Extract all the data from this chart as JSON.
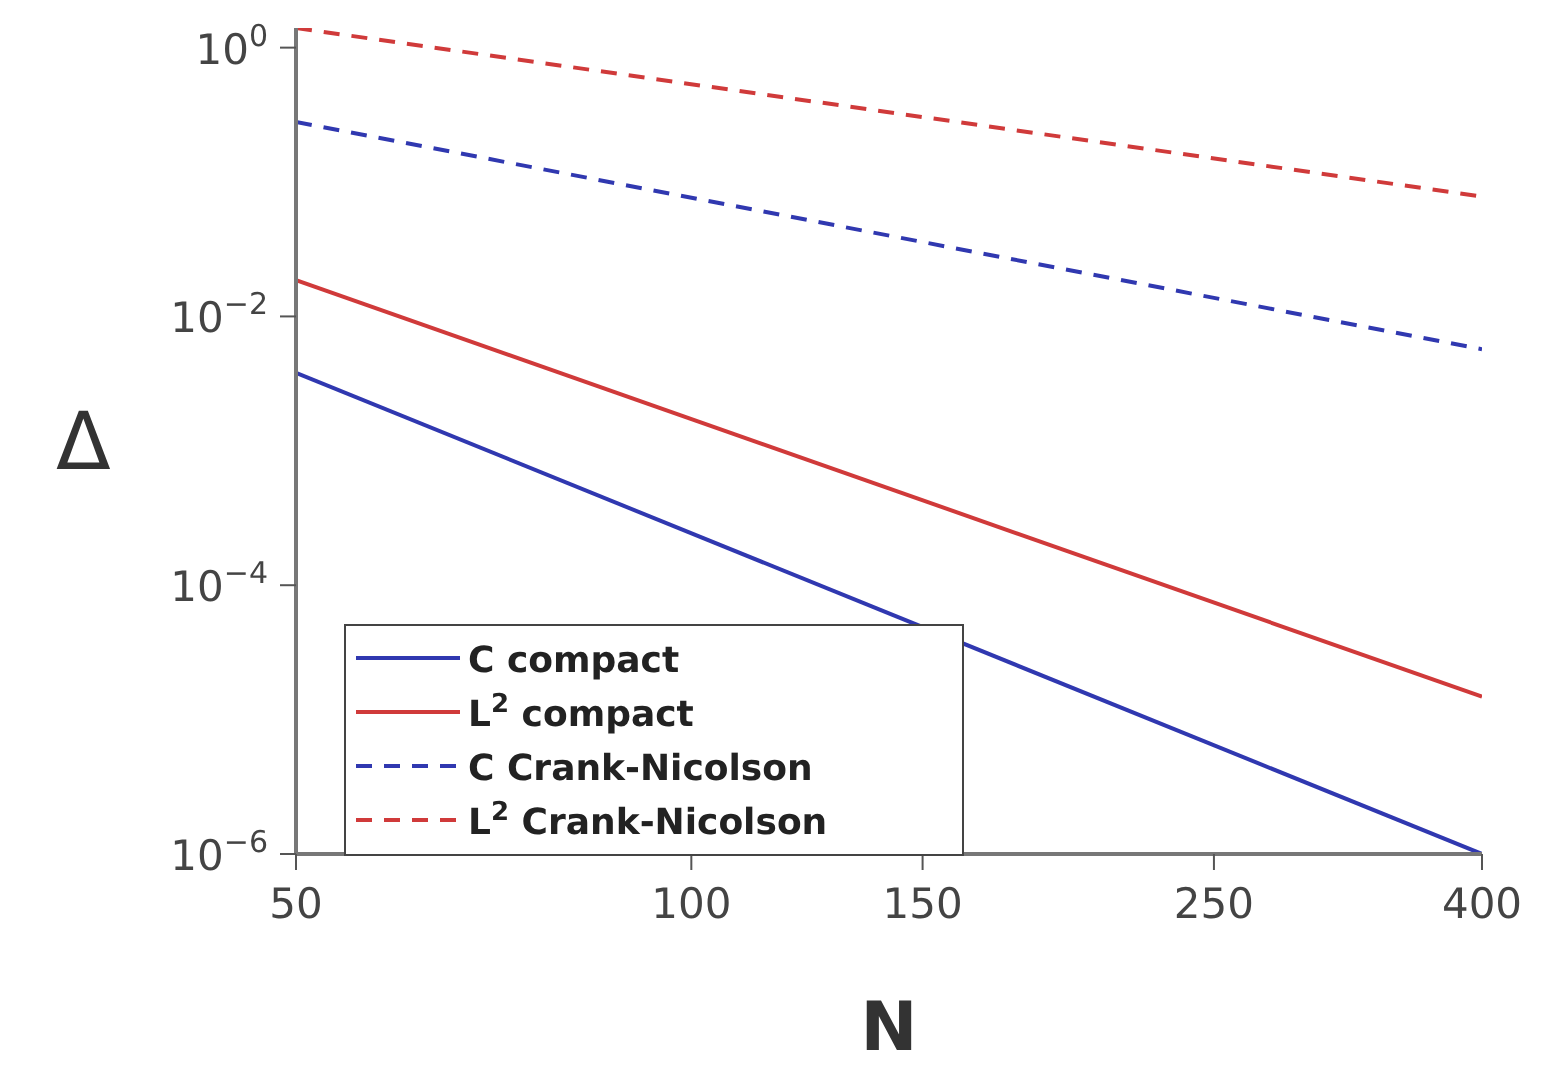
{
  "chart_data": {
    "type": "line",
    "xlabel": "N",
    "ylabel": "Δ",
    "log": "xy",
    "x": [
      50,
      400
    ],
    "xlim": [
      50,
      400
    ],
    "xticks": [
      50,
      100,
      150,
      250,
      400
    ],
    "ylim": [
      1e-06,
      1.4
    ],
    "yticks": [
      {
        "value": 1,
        "label": "10$^{0}$"
      },
      {
        "value": 0.01,
        "label": "10$^{−2}$"
      },
      {
        "value": 0.0001,
        "label": "10$^{−4}$"
      },
      {
        "value": 1e-06,
        "label": "10$^{−6}$"
      }
    ],
    "grid": false,
    "legend": "bottom left",
    "marker": "none",
    "series": [
      {
        "name": "C compact",
        "color": "#3038b0",
        "line_style": "solid",
        "values": [
          0.0038,
          1e-06
        ]
      },
      {
        "name": "L$^{2}$ compact",
        "color": "#d03a3a",
        "line_style": "solid",
        "values": [
          0.0186,
          1.48e-05
        ]
      },
      {
        "name": "C Crank-Nicolson",
        "color": "#3038b0",
        "line_style": "dashed",
        "values": [
          0.28,
          0.0057
        ]
      },
      {
        "name": "L$^{2}$ Crank-Nicolson",
        "color": "#d03a3a",
        "line_style": "dashed",
        "values": [
          1.4,
          0.078
        ]
      }
    ]
  }
}
